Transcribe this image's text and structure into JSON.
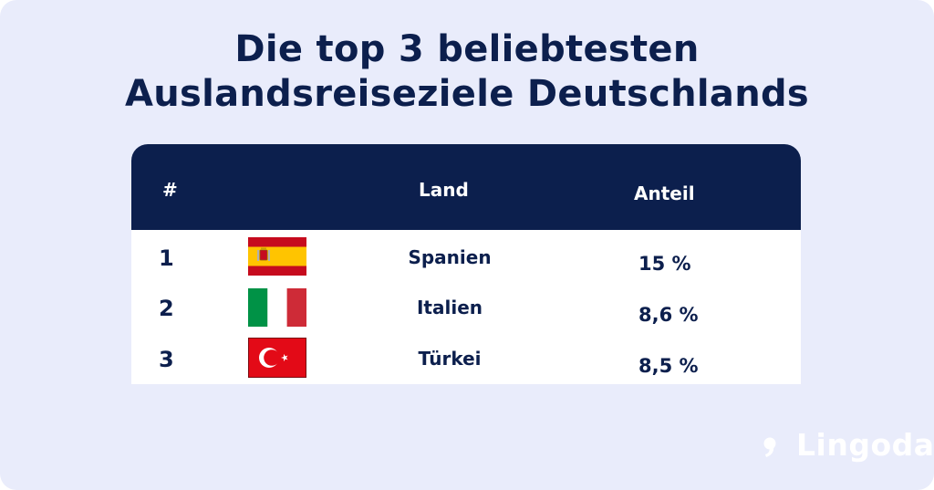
{
  "title": {
    "line1": "Die top 3 beliebtesten",
    "line2": "Auslandsreiseziele Deutschlands"
  },
  "table": {
    "headers": {
      "rank": "#",
      "country": "Land",
      "share": "Anteil"
    },
    "rows": [
      {
        "rank": "1",
        "country": "Spanien",
        "share": "15 %",
        "flag": "spain-flag-icon"
      },
      {
        "rank": "2",
        "country": "Italien",
        "share": "8,6 %",
        "flag": "italy-flag-icon"
      },
      {
        "rank": "3",
        "country": "Türkei",
        "share": "8,5 %",
        "flag": "turkey-flag-icon"
      }
    ]
  },
  "brand": {
    "name": "Lingoda",
    "logo_icon": "lingoda-logo-icon"
  },
  "colors": {
    "background": "#e9ecfb",
    "navy": "#0c1f4d",
    "white": "#ffffff"
  }
}
